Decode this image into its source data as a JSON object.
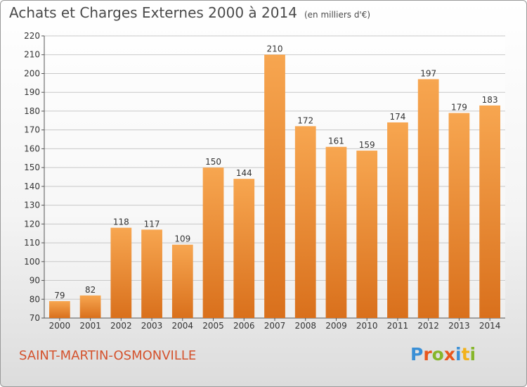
{
  "title": "Achats et Charges Externes 2000 à 2014",
  "unit_note": "(en milliers d'€)",
  "commune": "SAINT-MARTIN-OSMONVILLE",
  "logo": {
    "text": "Proxiti",
    "letter_colors": [
      "#3a8fd6",
      "#e8561d",
      "#86b62a",
      "#e8561d",
      "#3a8fd6",
      "#f2b21b",
      "#86b62a"
    ]
  },
  "colors": {
    "bar_light": "#f7a650",
    "bar_dark": "#d9701c",
    "grid": "#c8c8c8",
    "axis_text": "#333333",
    "title": "#4a4a4a",
    "commune": "#d4522d"
  },
  "chart_data": {
    "type": "bar",
    "title": "Achats et Charges Externes 2000 à 2014",
    "subtitle": "(en milliers d'€)",
    "xlabel": "",
    "ylabel": "",
    "categories": [
      "2000",
      "2001",
      "2002",
      "2003",
      "2004",
      "2005",
      "2006",
      "2007",
      "2008",
      "2009",
      "2010",
      "2011",
      "2012",
      "2013",
      "2014"
    ],
    "values": [
      79,
      82,
      118,
      117,
      109,
      150,
      144,
      210,
      172,
      161,
      159,
      174,
      197,
      179,
      183
    ],
    "data_labels": [
      "79",
      "82",
      "118",
      "117",
      "109",
      "150",
      "144",
      "210",
      "172",
      "161",
      "159",
      "174",
      "197",
      "179",
      "183"
    ],
    "ylim": [
      70,
      220
    ],
    "yticks": [
      70,
      80,
      90,
      100,
      110,
      120,
      130,
      140,
      150,
      160,
      170,
      180,
      190,
      200,
      210,
      220
    ],
    "grid": true,
    "legend": "none"
  }
}
